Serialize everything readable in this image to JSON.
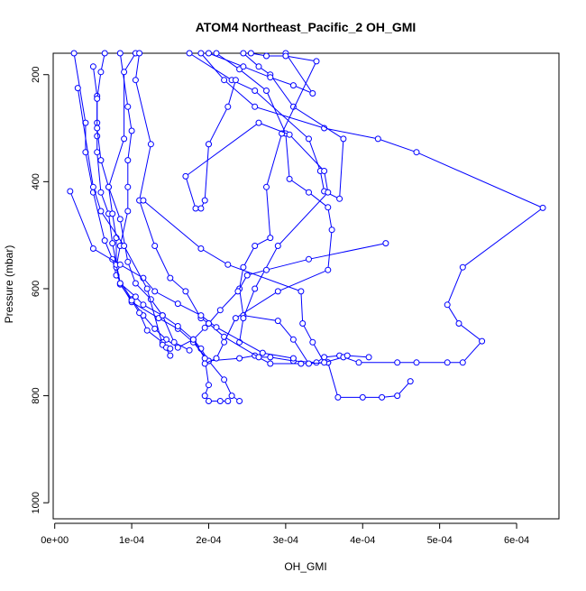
{
  "chart_data": {
    "type": "scatter",
    "title": "ATOM4 Northeast_Pacific_2 OH_GMI",
    "xlabel": "OH_GMI",
    "ylabel": "Pressure (mbar)",
    "xlim": [
      -2e-06,
      0.000655
    ],
    "ylim": [
      1030,
      160
    ],
    "y_reversed": true,
    "grid": false,
    "x_ticks": [
      {
        "value": 0,
        "label": "0e+00"
      },
      {
        "value": 0.0001,
        "label": "1e-04"
      },
      {
        "value": 0.0002,
        "label": "2e-04"
      },
      {
        "value": 0.0003,
        "label": "3e-04"
      },
      {
        "value": 0.0004,
        "label": "4e-04"
      },
      {
        "value": 0.0005,
        "label": "5e-04"
      },
      {
        "value": 0.0006,
        "label": "6e-04"
      }
    ],
    "y_ticks": [
      {
        "value": 200,
        "label": "200"
      },
      {
        "value": 400,
        "label": "400"
      },
      {
        "value": 600,
        "label": "600"
      },
      {
        "value": 800,
        "label": "800"
      },
      {
        "value": 1000,
        "label": "1000"
      }
    ],
    "colors": {
      "series": "#0000ff",
      "axis": "#000000"
    },
    "series": [
      {
        "points": [
          [
            2.5e-05,
            160
          ],
          [
            4e-05,
            290
          ],
          [
            4e-05,
            345
          ],
          [
            5e-05,
            420
          ],
          [
            6.5e-05,
            510
          ],
          [
            7.5e-05,
            545
          ],
          [
            8e-05,
            575
          ],
          [
            0.0001,
            620
          ],
          [
            0.000115,
            650
          ],
          [
            0.00013,
            675
          ],
          [
            0.000145,
            695
          ],
          [
            0.00016,
            710
          ],
          [
            0.00018,
            695
          ],
          [
            0.00019,
            712
          ],
          [
            0.0002,
            735
          ],
          [
            0.00022,
            770
          ],
          [
            0.00023,
            800
          ],
          [
            0.00024,
            810
          ]
        ]
      },
      {
        "points": [
          [
            5e-05,
            185
          ],
          [
            5.5e-05,
            240
          ],
          [
            5.5e-05,
            290
          ],
          [
            5.5e-05,
            315
          ],
          [
            5.5e-05,
            345
          ],
          [
            6e-05,
            420
          ],
          [
            7e-05,
            460
          ],
          [
            7.5e-05,
            515
          ],
          [
            8.5e-05,
            590
          ],
          [
            0.0001,
            625
          ],
          [
            0.000135,
            655
          ],
          [
            0.00016,
            675
          ],
          [
            0.00018,
            700
          ],
          [
            0.0002,
            735
          ],
          [
            0.00024,
            730
          ],
          [
            0.00026,
            725
          ],
          [
            0.00028,
            740
          ],
          [
            0.00032,
            740
          ],
          [
            0.000355,
            738
          ],
          [
            0.000368,
            803
          ],
          [
            0.0004,
            803
          ],
          [
            0.000425,
            803
          ],
          [
            0.000445,
            800
          ],
          [
            0.000462,
            773
          ]
        ]
      },
      {
        "points": [
          [
            6.5e-05,
            160
          ],
          [
            6e-05,
            195
          ],
          [
            5.5e-05,
            245
          ],
          [
            5.5e-05,
            300
          ],
          [
            6e-05,
            360
          ],
          [
            7e-05,
            410
          ],
          [
            8.5e-05,
            470
          ],
          [
            9.5e-05,
            550
          ],
          [
            0.000105,
            590
          ],
          [
            0.000125,
            620
          ],
          [
            0.00014,
            650
          ],
          [
            0.00016,
            670
          ],
          [
            0.00018,
            695
          ],
          [
            0.000195,
            730
          ],
          [
            0.0002,
            780
          ],
          [
            0.000195,
            800
          ],
          [
            0.0002,
            810
          ],
          [
            0.000215,
            810
          ],
          [
            0.000225,
            810
          ]
        ]
      },
      {
        "points": [
          [
            8.5e-05,
            160
          ],
          [
            9.5e-05,
            260
          ],
          [
            0.0001,
            305
          ],
          [
            9.5e-05,
            360
          ],
          [
            9.5e-05,
            410
          ],
          [
            9.5e-05,
            455
          ],
          [
            8.5e-05,
            520
          ],
          [
            8e-05,
            560
          ],
          [
            8.5e-05,
            592
          ],
          [
            0.0001,
            622
          ],
          [
            0.00011,
            645
          ],
          [
            0.00012,
            678
          ],
          [
            0.00014,
            700
          ],
          [
            0.00015,
            725
          ]
        ]
      },
      {
        "points": [
          [
            0.000105,
            160
          ],
          [
            9e-05,
            195
          ],
          [
            9e-05,
            320
          ],
          [
            7e-05,
            410
          ],
          [
            7.5e-05,
            460
          ],
          [
            8e-05,
            505
          ],
          [
            8e-05,
            555
          ],
          [
            8.5e-05,
            590
          ],
          [
            0.000105,
            615
          ],
          [
            0.000115,
            630
          ],
          [
            0.00014,
            650
          ],
          [
            0.000155,
            700
          ],
          [
            0.000175,
            715
          ]
        ]
      },
      {
        "points": [
          [
            0.00011,
            160
          ],
          [
            0.000105,
            210
          ],
          [
            0.000125,
            330
          ],
          [
            0.00011,
            435
          ],
          [
            0.00013,
            520
          ],
          [
            0.00015,
            580
          ],
          [
            0.00017,
            605
          ],
          [
            0.00019,
            655
          ],
          [
            0.0002,
            665
          ],
          [
            0.00022,
            690
          ],
          [
            0.000265,
            728
          ],
          [
            0.00028,
            728
          ],
          [
            0.00031,
            735
          ],
          [
            0.00034,
            738
          ],
          [
            0.00035,
            728
          ],
          [
            0.00037,
            725
          ],
          [
            0.000395,
            738
          ],
          [
            0.000445,
            738
          ],
          [
            0.00047,
            738
          ],
          [
            0.00051,
            738
          ],
          [
            0.00053,
            738
          ],
          [
            0.000555,
            698
          ],
          [
            0.000525,
            665
          ],
          [
            0.00051,
            630
          ],
          [
            0.00053,
            560
          ],
          [
            0.000634,
            449
          ],
          [
            0.00047,
            345
          ],
          [
            0.00042,
            320
          ],
          [
            0.00035,
            300
          ],
          [
            0.00026,
            260
          ],
          [
            0.00022,
            210
          ],
          [
            0.00019,
            160
          ]
        ]
      },
      {
        "points": [
          [
            0.000175,
            160
          ],
          [
            0.00023,
            210
          ],
          [
            0.00026,
            230
          ],
          [
            0.00033,
            320
          ],
          [
            0.000345,
            380
          ],
          [
            0.00035,
            418
          ],
          [
            0.00037,
            432
          ],
          [
            0.000375,
            320
          ],
          [
            0.00031,
            260
          ],
          [
            0.00028,
            200
          ],
          [
            0.000265,
            185
          ],
          [
            0.000245,
            160
          ]
        ]
      },
      {
        "points": [
          [
            0.00021,
            160
          ],
          [
            0.00024,
            190
          ],
          [
            0.000275,
            230
          ],
          [
            0.0003,
            310
          ],
          [
            0.000305,
            395
          ],
          [
            0.00033,
            420
          ],
          [
            0.000355,
            448
          ],
          [
            0.00036,
            490
          ],
          [
            0.000355,
            565
          ],
          [
            0.00029,
            605
          ],
          [
            0.000235,
            655
          ],
          [
            0.00022,
            700
          ],
          [
            0.00021,
            730
          ],
          [
            0.000195,
            740
          ]
        ]
      },
      {
        "points": [
          [
            0.0002,
            160
          ],
          [
            0.000245,
            185
          ],
          [
            0.00028,
            205
          ],
          [
            0.00031,
            220
          ],
          [
            0.000335,
            235
          ],
          [
            0.0003,
            160
          ]
        ]
      },
      {
        "points": [
          [
            0.000255,
            160
          ],
          [
            0.000275,
            165
          ],
          [
            0.0003,
            165
          ],
          [
            0.00034,
            175
          ],
          [
            0.000295,
            310
          ],
          [
            0.000275,
            410
          ],
          [
            0.00028,
            505
          ],
          [
            0.00026,
            520
          ],
          [
            0.000245,
            560
          ],
          [
            0.00024,
            600
          ],
          [
            0.000245,
            650
          ],
          [
            0.00029,
            660
          ],
          [
            0.00031,
            695
          ],
          [
            0.00033,
            740
          ],
          [
            0.000355,
            738
          ]
        ]
      },
      {
        "points": [
          [
            0.0002,
            330
          ],
          [
            0.000195,
            435
          ],
          [
            0.00019,
            450
          ],
          [
            0.000183,
            450
          ],
          [
            0.00017,
            390
          ],
          [
            0.000265,
            290
          ],
          [
            0.000305,
            312
          ],
          [
            0.00035,
            380
          ],
          [
            0.000355,
            420
          ],
          [
            0.00029,
            520
          ],
          [
            0.00026,
            600
          ],
          [
            0.000245,
            655
          ],
          [
            0.00024,
            700
          ]
        ]
      },
      {
        "points": [
          [
            2e-05,
            418
          ],
          [
            5e-05,
            525
          ],
          [
            8.5e-05,
            555
          ],
          [
            0.000115,
            580
          ],
          [
            0.00013,
            605
          ],
          [
            0.00016,
            628
          ],
          [
            0.00019,
            650
          ],
          [
            0.00021,
            672
          ],
          [
            0.00027,
            720
          ],
          [
            0.00031,
            730
          ]
        ]
      },
      {
        "points": [
          [
            0.000115,
            435
          ],
          [
            0.00019,
            525
          ],
          [
            0.000225,
            555
          ],
          [
            0.00032,
            605
          ],
          [
            0.000322,
            665
          ],
          [
            0.000335,
            700
          ],
          [
            0.00035,
            738
          ],
          [
            0.000375,
            728
          ],
          [
            0.00038,
            725
          ],
          [
            0.000408,
            728
          ]
        ]
      },
      {
        "points": [
          [
            0.00043,
            515
          ],
          [
            0.00033,
            545
          ],
          [
            0.000275,
            565
          ],
          [
            0.00025,
            575
          ],
          [
            0.000238,
            605
          ],
          [
            0.000215,
            640
          ],
          [
            0.0002,
            665
          ],
          [
            0.000195,
            673
          ],
          [
            0.00018,
            695
          ]
        ]
      },
      {
        "points": [
          [
            0.000235,
            210
          ],
          [
            0.000225,
            260
          ],
          [
            0.0002,
            330
          ]
        ]
      },
      {
        "points": [
          [
            3e-05,
            225
          ],
          [
            5e-05,
            410
          ],
          [
            6e-05,
            455
          ],
          [
            9e-05,
            520
          ],
          [
            0.00012,
            600
          ],
          [
            0.00014,
            705
          ],
          [
            0.000145,
            710
          ],
          [
            0.00015,
            712
          ]
        ]
      }
    ]
  }
}
